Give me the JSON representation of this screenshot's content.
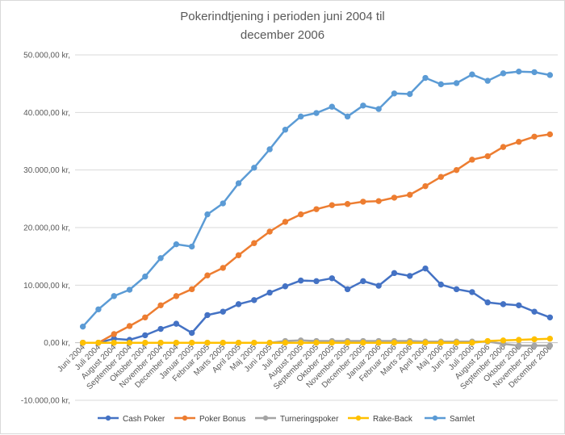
{
  "chart_data": {
    "type": "line",
    "title": [
      "Pokerindtjening i perioden juni 2004 til",
      "december 2006"
    ],
    "y_ticks": [
      {
        "value": 50000,
        "label": "50.000,00 kr,"
      },
      {
        "value": 40000,
        "label": "40.000,00 kr,"
      },
      {
        "value": 30000,
        "label": "30.000,00 kr,"
      },
      {
        "value": 20000,
        "label": "20.000,00 kr,"
      },
      {
        "value": 10000,
        "label": "10.000,00 kr,"
      },
      {
        "value": 0,
        "label": "0,00 kr,"
      },
      {
        "value": -10000,
        "label": "-10.000,00 kr,"
      }
    ],
    "ylim": [
      -10000,
      50000
    ],
    "grid": true,
    "legend_position": "bottom",
    "categories": [
      "Juni 2004",
      "Juli 2004",
      "August 2004",
      "September 2004",
      "Oktober 2004",
      "November 2004",
      "December 2004",
      "Januar 2005",
      "Februar 2005",
      "Marts 2005",
      "April 2005",
      "Maj 2005",
      "Juni 2005",
      "Juli 2005",
      "August 2005",
      "September 2005",
      "Oktober 2005",
      "November 2005",
      "December 2005",
      "Januar 2006",
      "Februar 2006",
      "Marts 2006",
      "April 2006",
      "Maj 2006",
      "Juni 2006",
      "Juli 2006",
      "August 2006",
      "September 2006",
      "Oktober 2006",
      "November 2006",
      "December 2006"
    ],
    "series": [
      {
        "name": "Cash Poker",
        "color": "#4472c4",
        "values": [
          0,
          0,
          700,
          500,
          1300,
          2400,
          3300,
          1700,
          4800,
          5400,
          6700,
          7400,
          8700,
          9800,
          10800,
          10700,
          11200,
          9300,
          10700,
          9900,
          12100,
          11600,
          12900,
          10100,
          9300,
          8800,
          7000,
          6700,
          6500,
          5400,
          4400
        ]
      },
      {
        "name": "Poker Bonus",
        "color": "#ed7d31",
        "values": [
          0,
          0,
          1500,
          2900,
          4400,
          6500,
          8100,
          9300,
          11700,
          13000,
          15200,
          17300,
          19300,
          21000,
          22300,
          23200,
          23900,
          24100,
          24500,
          24600,
          25200,
          25700,
          27200,
          28800,
          30000,
          31800,
          32400,
          34000,
          34900,
          35800,
          36200
        ]
      },
      {
        "name": "Turneringspoker",
        "color": "#a5a5a5",
        "values": [
          0,
          0,
          0,
          0,
          0,
          0,
          0,
          0,
          0,
          0,
          0,
          0,
          0,
          300,
          400,
          300,
          300,
          300,
          300,
          300,
          300,
          300,
          200,
          200,
          200,
          200,
          200,
          -200,
          -500,
          -500,
          -500
        ]
      },
      {
        "name": "Rake-Back",
        "color": "#ffc000",
        "values": [
          0,
          0,
          0,
          0,
          0,
          0,
          0,
          0,
          0,
          0,
          0,
          0,
          0,
          0,
          0,
          0,
          0,
          0,
          0,
          0,
          0,
          0,
          0,
          0,
          0,
          0,
          300,
          400,
          500,
          600,
          700
        ]
      },
      {
        "name": "Samlet",
        "color": "#5b9bd5",
        "values": [
          2800,
          5800,
          8100,
          9200,
          11500,
          14700,
          17100,
          16700,
          22300,
          24200,
          27700,
          30400,
          33600,
          37000,
          39300,
          39900,
          41000,
          39300,
          41200,
          40600,
          43300,
          43200,
          46000,
          44900,
          45100,
          46600,
          45500,
          46800,
          47100,
          47000,
          46500
        ]
      }
    ]
  }
}
